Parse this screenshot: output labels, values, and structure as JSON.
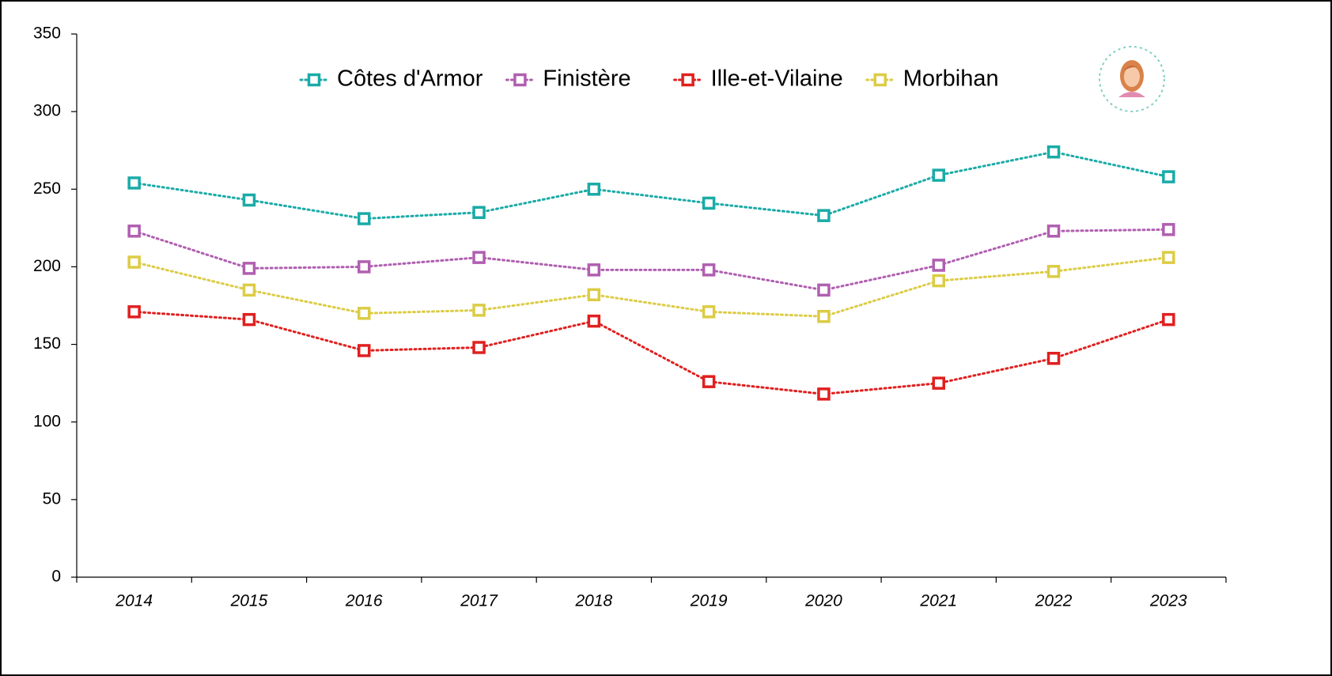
{
  "chart_data": {
    "type": "line",
    "categories": [
      "2014",
      "2015",
      "2016",
      "2017",
      "2018",
      "2019",
      "2020",
      "2021",
      "2022",
      "2023"
    ],
    "series": [
      {
        "name": "Côtes d'Armor",
        "color": "#1aaba7",
        "values": [
          254,
          243,
          231,
          235,
          250,
          241,
          233,
          259,
          274,
          258
        ]
      },
      {
        "name": "Finistère",
        "color": "#b05fb0",
        "values": [
          223,
          199,
          200,
          206,
          198,
          198,
          185,
          201,
          223,
          224
        ]
      },
      {
        "name": "Ille-et-Vilaine",
        "color": "#e0201f",
        "values": [
          171,
          166,
          146,
          148,
          165,
          126,
          118,
          125,
          141,
          166
        ]
      },
      {
        "name": "Morbihan",
        "color": "#dccc45",
        "values": [
          203,
          185,
          170,
          172,
          182,
          171,
          168,
          191,
          197,
          206
        ]
      }
    ],
    "ylim": [
      0,
      350
    ],
    "yticks": [
      0,
      50,
      100,
      150,
      200,
      250,
      300,
      350
    ],
    "grid": false,
    "legend": "top"
  }
}
